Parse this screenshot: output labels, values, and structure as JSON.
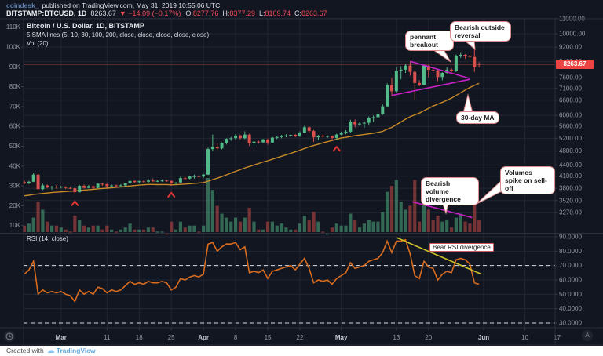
{
  "header": {
    "author": "coindesk_",
    "published": "published on TradingView.com, May 31, 2019 10:55:06 UTC",
    "symbol": "BITSTAMP:BTCUSD, 1D",
    "last_price": "8263.67",
    "change": "▼ −14.09 (−0.17%)",
    "o_label": "O:",
    "o_value": "8277.76",
    "h_label": "H:",
    "h_value": "8377.29",
    "l_label": "L:",
    "l_value": "8109.74",
    "c_label": "C:",
    "c_value": "8263.67"
  },
  "legend": {
    "title": "Bitcoin / U.S. Dollar, 1D, BITSTAMP",
    "sma_line": "5 SMA lines (5, 10, 30, 100, 200, close, close, close, close, close)",
    "vol_line": "Vol (20)",
    "rsi_line": "RSI (14, close)"
  },
  "annotations": {
    "pennant": "pennant breakout",
    "reversal": "Bearish outside reversal",
    "ma": "30-day MA",
    "vol_div": "Bearish volume divergence",
    "vol_spike": "Volumes spike on sell-off",
    "rsi_div": "Bear RSI divergence"
  },
  "price_tag": "8263.67",
  "axis_buttons": {
    "auto": "A"
  },
  "footer": {
    "created": "Created with",
    "brand": "TradingView"
  },
  "chart_data": {
    "type": "candlestick",
    "symbol": "BITSTAMP:BTCUSD",
    "interval": "1D",
    "start_date": "2019-02-21",
    "end_date": "2019-05-31",
    "price_scale": "log",
    "legend_position": "top-left",
    "grid": true,
    "price_ticks": [
      {
        "v": 11000,
        "l": "11000.00"
      },
      {
        "v": 10000,
        "l": "10000.00"
      },
      {
        "v": 9200,
        "l": "9200.00"
      },
      {
        "v": 8400,
        "l": "8400.00"
      },
      {
        "v": 7600,
        "l": "7600.00"
      },
      {
        "v": 7100,
        "l": "7100.00"
      },
      {
        "v": 6600,
        "l": "6600.00"
      },
      {
        "v": 6000,
        "l": "6000.00"
      },
      {
        "v": 5600,
        "l": "5600.00"
      },
      {
        "v": 5200,
        "l": "5200.00"
      },
      {
        "v": 4800,
        "l": "4800.00"
      },
      {
        "v": 4400,
        "l": "4400.00"
      },
      {
        "v": 4100,
        "l": "4100.00"
      },
      {
        "v": 3800,
        "l": "3800.00"
      },
      {
        "v": 3520,
        "l": "3520.00"
      },
      {
        "v": 3270,
        "l": "3270.00"
      }
    ],
    "volume_ticks": [
      {
        "v": 110,
        "l": "110K"
      },
      {
        "v": 100,
        "l": "100K"
      },
      {
        "v": 90,
        "l": "90K"
      },
      {
        "v": 80,
        "l": "80K"
      },
      {
        "v": 70,
        "l": "70K"
      },
      {
        "v": 60,
        "l": "60K"
      },
      {
        "v": 50,
        "l": "50K"
      },
      {
        "v": 40,
        "l": "40K"
      },
      {
        "v": 30,
        "l": "30K"
      },
      {
        "v": 20,
        "l": "20K"
      },
      {
        "v": 10,
        "l": "10K"
      }
    ],
    "rsi_ticks": [
      {
        "v": 90,
        "l": "90.0000"
      },
      {
        "v": 80,
        "l": "80.0000"
      },
      {
        "v": 70,
        "l": "70.0000"
      },
      {
        "v": 60,
        "l": "60.0000"
      },
      {
        "v": 50,
        "l": "50.0000"
      },
      {
        "v": 40,
        "l": "40.0000"
      },
      {
        "v": 30,
        "l": "30.0000"
      }
    ],
    "time_ticks": [
      {
        "l": "Mar",
        "i": 8,
        "major": true
      },
      {
        "l": "11",
        "i": 18
      },
      {
        "l": "18",
        "i": 25
      },
      {
        "l": "25",
        "i": 32
      },
      {
        "l": "Apr",
        "i": 39,
        "major": true
      },
      {
        "l": "8",
        "i": 46
      },
      {
        "l": "15",
        "i": 53
      },
      {
        "l": "22",
        "i": 60
      },
      {
        "l": "May",
        "i": 69,
        "major": true
      },
      {
        "l": "13",
        "i": 81
      },
      {
        "l": "20",
        "i": 88
      },
      {
        "l": "Jun",
        "i": 100,
        "major": true
      },
      {
        "l": "10",
        "i": 109
      },
      {
        "l": "17",
        "i": 116
      }
    ],
    "overbought": 70,
    "oversold": 30,
    "last_close": 8263.67,
    "markers_up_arrow_indices": [
      11,
      32,
      68
    ],
    "trendlines": {
      "pennant_upper": {
        "from": {
          "i": 84,
          "p": 8420
        },
        "to": {
          "i": 97,
          "p": 7560
        }
      },
      "pennant_lower": {
        "from": {
          "i": 80,
          "p": 6800
        },
        "to": {
          "i": 97,
          "p": 7520
        }
      },
      "volume_divergence": {
        "from": {
          "i": 84.5,
          "v": 22
        },
        "to": {
          "i": 97.5,
          "v": 14
        }
      },
      "rsi_divergence": {
        "from": {
          "i": 81,
          "r": 89.5
        },
        "to": {
          "i": 99.5,
          "r": 64
        }
      }
    },
    "pre_closes": [
      3550,
      3560,
      3540,
      3520,
      3500,
      3520,
      3540,
      3560,
      3580,
      3600,
      3560,
      3540,
      3520,
      3540,
      3560,
      3580,
      3600,
      3620,
      3600,
      3580,
      3560,
      3580,
      3600,
      3620,
      3640,
      3660,
      3700,
      3800,
      3950,
      4120
    ],
    "candles": [
      [
        3950,
        3990,
        3900,
        3920,
        10,
        64
      ],
      [
        3920,
        3980,
        3900,
        3960,
        11,
        67
      ],
      [
        3960,
        4180,
        3950,
        4140,
        14,
        73
      ],
      [
        4140,
        4190,
        3730,
        3780,
        22,
        50
      ],
      [
        3780,
        3910,
        3760,
        3870,
        18,
        53
      ],
      [
        3870,
        3890,
        3800,
        3820,
        12,
        51
      ],
      [
        3820,
        3860,
        3770,
        3840,
        10,
        52
      ],
      [
        3840,
        3880,
        3790,
        3820,
        10,
        51
      ],
      [
        3820,
        3860,
        3800,
        3840,
        9,
        52
      ],
      [
        3840,
        3850,
        3780,
        3810,
        8,
        50
      ],
      [
        3810,
        3830,
        3780,
        3800,
        7,
        49
      ],
      [
        3800,
        3820,
        3660,
        3710,
        15,
        45
      ],
      [
        3710,
        3880,
        3700,
        3860,
        13,
        53
      ],
      [
        3860,
        3890,
        3790,
        3810,
        10,
        50
      ],
      [
        3810,
        3880,
        3800,
        3850,
        9,
        52
      ],
      [
        3850,
        3870,
        3780,
        3810,
        10,
        50
      ],
      [
        3810,
        3920,
        3800,
        3910,
        10,
        55
      ],
      [
        3910,
        3930,
        3860,
        3900,
        8,
        54
      ],
      [
        3900,
        3910,
        3810,
        3850,
        10,
        51
      ],
      [
        3850,
        3890,
        3820,
        3870,
        8,
        53
      ],
      [
        3870,
        3890,
        3830,
        3860,
        7,
        52
      ],
      [
        3860,
        3900,
        3820,
        3870,
        8,
        53
      ],
      [
        3870,
        3930,
        3850,
        3920,
        9,
        56
      ],
      [
        3920,
        4010,
        3900,
        3980,
        11,
        59
      ],
      [
        3980,
        3990,
        3930,
        3950,
        8,
        57
      ],
      [
        3950,
        3990,
        3920,
        3970,
        8,
        58
      ],
      [
        3970,
        4000,
        3930,
        3960,
        8,
        57
      ],
      [
        3960,
        4030,
        3930,
        3990,
        9,
        59
      ],
      [
        3990,
        4040,
        3950,
        3970,
        9,
        58
      ],
      [
        3970,
        4000,
        3950,
        3980,
        7,
        58
      ],
      [
        3980,
        4020,
        3960,
        3990,
        7,
        59
      ],
      [
        3990,
        4010,
        3960,
        3980,
        6,
        58
      ],
      [
        3980,
        3990,
        3860,
        3920,
        12,
        53
      ],
      [
        3920,
        3950,
        3880,
        3940,
        8,
        55
      ],
      [
        3940,
        4090,
        3930,
        4050,
        12,
        61
      ],
      [
        4050,
        4080,
        4010,
        4040,
        9,
        60
      ],
      [
        4040,
        4110,
        4020,
        4090,
        10,
        62
      ],
      [
        4090,
        4140,
        4040,
        4100,
        10,
        63
      ],
      [
        4100,
        4120,
        4070,
        4090,
        7,
        62
      ],
      [
        4090,
        4160,
        4060,
        4140,
        10,
        64
      ],
      [
        4140,
        4900,
        4130,
        4860,
        34,
        85
      ],
      [
        4860,
        5320,
        4790,
        4930,
        28,
        86
      ],
      [
        4930,
        5030,
        4830,
        4880,
        20,
        80
      ],
      [
        4880,
        5070,
        4850,
        5050,
        16,
        83
      ],
      [
        5050,
        5200,
        5000,
        5180,
        14,
        85
      ],
      [
        5180,
        5240,
        5120,
        5200,
        12,
        85
      ],
      [
        5200,
        5340,
        5150,
        5290,
        14,
        86
      ],
      [
        5290,
        5320,
        5160,
        5200,
        12,
        81
      ],
      [
        5200,
        5430,
        5170,
        5320,
        14,
        83
      ],
      [
        5320,
        5350,
        4950,
        5040,
        19,
        65
      ],
      [
        5040,
        5110,
        4960,
        5090,
        12,
        66
      ],
      [
        5090,
        5120,
        5030,
        5070,
        8,
        65
      ],
      [
        5070,
        5180,
        5050,
        5160,
        8,
        67
      ],
      [
        5160,
        5190,
        4990,
        5060,
        12,
        61
      ],
      [
        5060,
        5240,
        5040,
        5220,
        12,
        66
      ],
      [
        5220,
        5270,
        5170,
        5240,
        10,
        67
      ],
      [
        5240,
        5310,
        5200,
        5280,
        11,
        68
      ],
      [
        5280,
        5330,
        5230,
        5290,
        9,
        69
      ],
      [
        5290,
        5350,
        5230,
        5310,
        8,
        70
      ],
      [
        5310,
        5340,
        5230,
        5260,
        8,
        67
      ],
      [
        5260,
        5430,
        5240,
        5390,
        11,
        71
      ],
      [
        5390,
        5620,
        5380,
        5570,
        15,
        75
      ],
      [
        5570,
        5600,
        5380,
        5440,
        13,
        68
      ],
      [
        5440,
        5480,
        5080,
        5230,
        17,
        58
      ],
      [
        5230,
        5310,
        5130,
        5280,
        12,
        60
      ],
      [
        5280,
        5320,
        5220,
        5260,
        7,
        59
      ],
      [
        5260,
        5300,
        5210,
        5270,
        6,
        60
      ],
      [
        5270,
        5290,
        5160,
        5210,
        9,
        57
      ],
      [
        5210,
        5350,
        5150,
        5320,
        11,
        61
      ],
      [
        5320,
        5420,
        5300,
        5380,
        10,
        63
      ],
      [
        5380,
        5470,
        5330,
        5420,
        10,
        65
      ],
      [
        5420,
        5840,
        5390,
        5770,
        16,
        72
      ],
      [
        5770,
        5850,
        5570,
        5670,
        13,
        68
      ],
      [
        5670,
        5760,
        5620,
        5700,
        9,
        69
      ],
      [
        5700,
        5780,
        5550,
        5730,
        11,
        70
      ],
      [
        5730,
        5960,
        5650,
        5900,
        13,
        73
      ],
      [
        5900,
        5990,
        5760,
        5930,
        12,
        74
      ],
      [
        5930,
        6100,
        5870,
        6050,
        12,
        75
      ],
      [
        6050,
        6430,
        6020,
        6350,
        17,
        79
      ],
      [
        6350,
        7330,
        6340,
        7250,
        27,
        87
      ],
      [
        7250,
        7590,
        6780,
        6980,
        30,
        79
      ],
      [
        6980,
        8100,
        6930,
        7930,
        33,
        87
      ],
      [
        7930,
        8160,
        7520,
        7990,
        22,
        87
      ],
      [
        7990,
        8290,
        7830,
        8200,
        18,
        88
      ],
      [
        8200,
        8390,
        7690,
        7880,
        20,
        78
      ],
      [
        7880,
        7950,
        6600,
        7350,
        33,
        63
      ],
      [
        7350,
        7480,
        7210,
        7270,
        12,
        61
      ],
      [
        7270,
        8230,
        7250,
        8190,
        23,
        73
      ],
      [
        8190,
        8230,
        7610,
        7980,
        18,
        69
      ],
      [
        7980,
        8110,
        7830,
        7950,
        13,
        68
      ],
      [
        7950,
        8030,
        7440,
        7630,
        15,
        60
      ],
      [
        7630,
        7860,
        7470,
        7830,
        12,
        64
      ],
      [
        7830,
        8120,
        7770,
        7990,
        13,
        66
      ],
      [
        7990,
        8060,
        7860,
        7930,
        9,
        65
      ],
      [
        7930,
        8780,
        7870,
        8720,
        14,
        74
      ],
      [
        8720,
        8920,
        8600,
        8770,
        16,
        75
      ],
      [
        8770,
        8800,
        8560,
        8710,
        12,
        74
      ],
      [
        8710,
        8760,
        8420,
        8650,
        11,
        71
      ],
      [
        8650,
        9100,
        7880,
        8120,
        21,
        58
      ],
      [
        8277.76,
        8377.29,
        8109.74,
        8263.67,
        13,
        57
      ]
    ],
    "colors": {
      "up": "#53ba89",
      "down": "#d9504c",
      "ma": "#c78a28",
      "rsi": "#d96c1f",
      "pattern": "#c521c5",
      "rsi_trend": "#cdc22a",
      "close_line": "#a03c46",
      "tag_bg": "#ee4343",
      "marker": "#e23535",
      "grid": "#202633",
      "frame": "#2a2f3b",
      "axis_text": "#9298a3",
      "axis_text_bright": "#c6cad3",
      "band": "#d8dbe3"
    }
  }
}
